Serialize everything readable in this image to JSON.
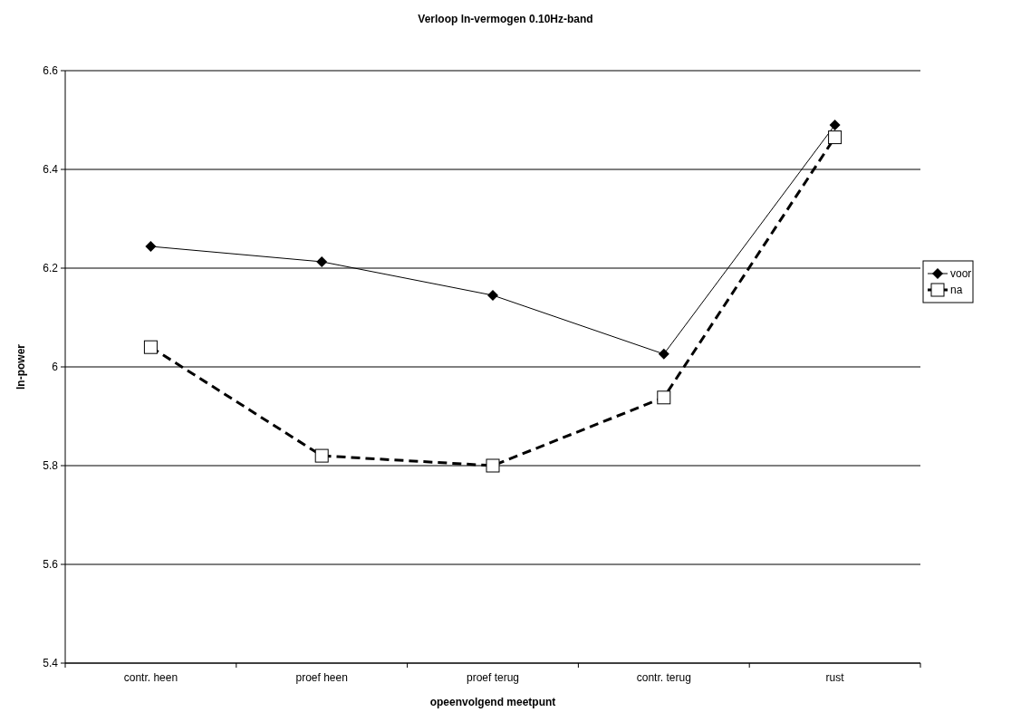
{
  "chart_data": {
    "type": "line",
    "title": "Verloop ln-vermogen 0.10Hz-band",
    "xlabel": "opeenvolgend meetpunt",
    "ylabel": "ln-power",
    "categories": [
      "contr. heen",
      "proef heen",
      "proef terug",
      "contr. terug",
      "rust"
    ],
    "series": [
      {
        "name": "voor",
        "color": "#000000",
        "marker": "diamond",
        "line_style": "solid",
        "values": [
          6.244,
          6.213,
          6.145,
          6.026,
          6.49
        ]
      },
      {
        "name": "na",
        "color": "#000000",
        "marker": "square",
        "line_style": "dashed",
        "values": [
          6.04,
          5.82,
          5.8,
          5.938,
          6.465
        ]
      }
    ],
    "ylim": [
      5.4,
      6.6
    ],
    "yticks": [
      5.4,
      5.6,
      5.8,
      6,
      6.2,
      6.4,
      6.6
    ],
    "grid": "y",
    "legend": "right"
  }
}
